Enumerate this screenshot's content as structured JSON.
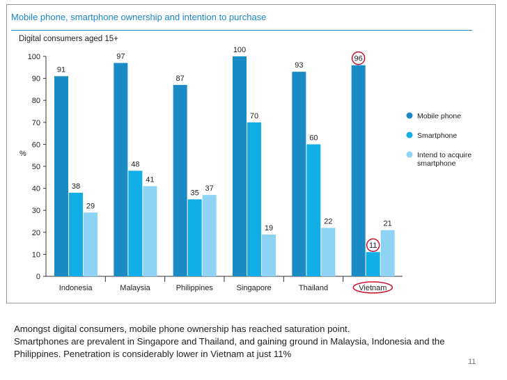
{
  "slide": {
    "caption_lines": [
      "Amongst digital consumers, mobile phone ownership has reached saturation point.",
      "Smartphones are prevalent in Singapore and Thailand, and gaining ground in Malaysia, Indonesia and the",
      "Philippines. Penetration is considerably lower in Vietnam at just 11%"
    ],
    "page_number": "11"
  },
  "chart_data": {
    "type": "bar",
    "title": "Mobile phone, smartphone ownership and intention to purchase",
    "subtitle": "Digital consumers aged 15+",
    "ylabel": "%",
    "xlabel": "",
    "ylim": [
      0,
      100
    ],
    "yticks": [
      0,
      10,
      20,
      30,
      40,
      50,
      60,
      70,
      80,
      90,
      100
    ],
    "grid": false,
    "legend_position": "right",
    "categories": [
      "Indonesia",
      "Malaysia",
      "Philippines",
      "Singapore",
      "Thailand",
      "Vietnam"
    ],
    "series": [
      {
        "name": "Mobile phone",
        "color": "#1a8bc4",
        "values": [
          91,
          97,
          87,
          100,
          93,
          96
        ]
      },
      {
        "name": "Smartphone",
        "color": "#11aee8",
        "values": [
          38,
          48,
          35,
          70,
          60,
          11
        ]
      },
      {
        "name": "Intend to acquire smartphone",
        "color": "#8fd3f4",
        "values": [
          29,
          41,
          37,
          19,
          22,
          21
        ]
      }
    ],
    "highlights": [
      {
        "category": "Vietnam",
        "series": "Mobile phone",
        "marker": "circle",
        "color": "#c8102e"
      },
      {
        "category": "Vietnam",
        "series": "Smartphone",
        "marker": "circle",
        "color": "#c8102e"
      },
      {
        "category": "Vietnam",
        "target": "category-label",
        "marker": "ellipse",
        "color": "#c8102e"
      }
    ]
  }
}
